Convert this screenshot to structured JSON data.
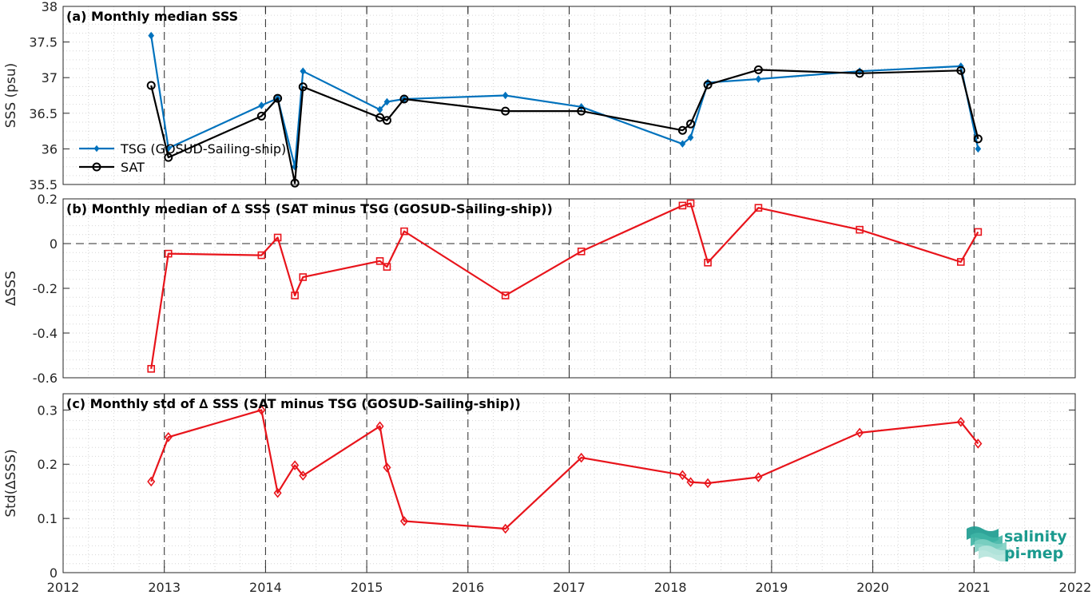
{
  "colors": {
    "tsg": "#0072BD",
    "sat": "#000000",
    "delta": "#E8141B",
    "logo": "#1a9a8e"
  },
  "logo": {
    "line1": "salinity",
    "line2": "pi-mep"
  },
  "chart_data": [
    {
      "type": "line",
      "title": "(a) Monthly median SSS",
      "ylabel": "SSS (psu)",
      "xlim": [
        2012,
        2022
      ],
      "ylim": [
        35.5,
        38
      ],
      "yticks": [
        35.5,
        36,
        36.5,
        37,
        37.5,
        38
      ],
      "ytick_labels": [
        "35.5",
        "36",
        "36.5",
        "37",
        "37.5",
        "38"
      ],
      "grid": true,
      "legend": {
        "position": "left"
      },
      "series": [
        {
          "name": "TSG (GOSUD-Sailing-ship)",
          "marker": "diamond",
          "x": [
            2012.87,
            2013.04,
            2013.96,
            2014.12,
            2014.29,
            2014.37,
            2015.13,
            2015.2,
            2015.37,
            2016.37,
            2017.12,
            2018.12,
            2018.2,
            2018.37,
            2018.87,
            2019.87,
            2020.87,
            2021.04
          ],
          "y": [
            37.59,
            36.01,
            36.61,
            36.71,
            35.75,
            37.09,
            36.55,
            36.66,
            36.7,
            36.75,
            36.59,
            36.07,
            36.16,
            36.93,
            36.98,
            37.09,
            37.16,
            36.0
          ]
        },
        {
          "name": "SAT",
          "marker": "circle",
          "x": [
            2012.87,
            2013.04,
            2013.96,
            2014.12,
            2014.29,
            2014.37,
            2015.13,
            2015.2,
            2015.37,
            2016.37,
            2017.12,
            2018.12,
            2018.2,
            2018.37,
            2018.87,
            2019.87,
            2020.87,
            2021.04
          ],
          "y": [
            36.89,
            35.88,
            36.46,
            36.71,
            35.52,
            36.87,
            36.44,
            36.4,
            36.7,
            36.53,
            36.53,
            36.26,
            36.35,
            36.9,
            37.11,
            37.06,
            37.1,
            36.14
          ]
        }
      ]
    },
    {
      "type": "line",
      "title": "(b) Monthly median of ∆ SSS (SAT minus TSG (GOSUD-Sailing-ship))",
      "ylabel": "∆SSS",
      "xlim": [
        2012,
        2022
      ],
      "ylim": [
        -0.6,
        0.2
      ],
      "yticks": [
        -0.6,
        -0.4,
        -0.2,
        0,
        0.2
      ],
      "ytick_labels": [
        "-0.6",
        "-0.4",
        "-0.2",
        "0",
        "0.2"
      ],
      "grid": true,
      "reference_line": 0,
      "series": [
        {
          "marker": "square",
          "x": [
            2012.87,
            2013.04,
            2013.96,
            2014.12,
            2014.29,
            2014.37,
            2015.13,
            2015.2,
            2015.37,
            2016.37,
            2017.12,
            2018.12,
            2018.2,
            2018.37,
            2018.87,
            2019.87,
            2020.87,
            2021.04
          ],
          "y": [
            -0.56,
            -0.045,
            -0.052,
            0.027,
            -0.232,
            -0.15,
            -0.078,
            -0.104,
            0.055,
            -0.232,
            -0.035,
            0.17,
            0.18,
            -0.085,
            0.16,
            0.062,
            -0.082,
            0.052
          ]
        }
      ]
    },
    {
      "type": "line",
      "title": "(c) Monthly std of ∆ SSS (SAT minus TSG (GOSUD-Sailing-ship))",
      "ylabel": "Std(∆SSS)",
      "xlabel": "",
      "xlim": [
        2012,
        2022
      ],
      "ylim": [
        0,
        0.33
      ],
      "yticks": [
        0,
        0.1,
        0.2,
        0.3
      ],
      "ytick_labels": [
        "0",
        "0.1",
        "0.2",
        "0.3"
      ],
      "xticks": [
        2012,
        2013,
        2014,
        2015,
        2016,
        2017,
        2018,
        2019,
        2020,
        2021,
        2022
      ],
      "xtick_labels": [
        "2012",
        "2013",
        "2014",
        "2015",
        "2016",
        "2017",
        "2018",
        "2019",
        "2020",
        "2021",
        "2022"
      ],
      "grid": true,
      "series": [
        {
          "marker": "diamond",
          "x": [
            2012.87,
            2013.04,
            2013.96,
            2014.12,
            2014.29,
            2014.37,
            2015.13,
            2015.2,
            2015.37,
            2016.37,
            2017.12,
            2018.12,
            2018.2,
            2018.37,
            2018.87,
            2019.87,
            2020.87,
            2021.04
          ],
          "y": [
            0.168,
            0.25,
            0.3,
            0.147,
            0.198,
            0.179,
            0.27,
            0.194,
            0.095,
            0.081,
            0.212,
            0.18,
            0.167,
            0.165,
            0.176,
            0.258,
            0.278,
            0.238
          ]
        }
      ]
    }
  ]
}
